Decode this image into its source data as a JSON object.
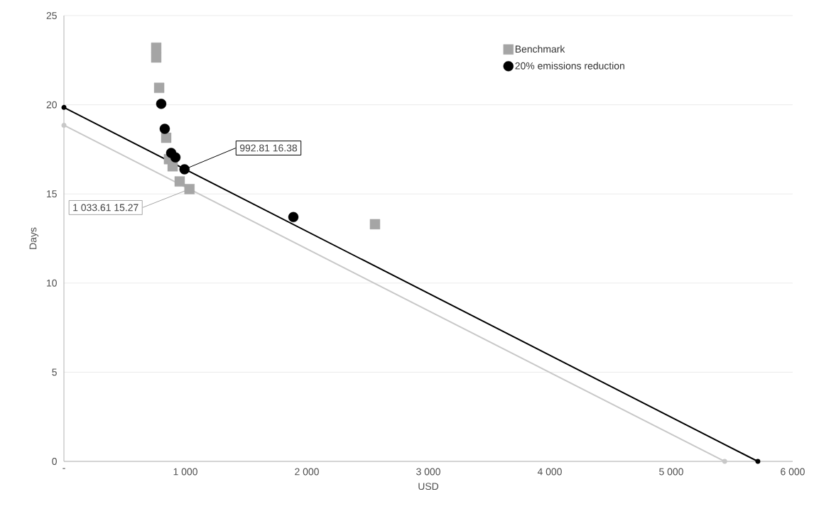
{
  "chart_data": {
    "type": "scatter",
    "xlabel": "USD",
    "ylabel": "Days",
    "xlim": [
      0,
      6000
    ],
    "ylim": [
      0,
      25
    ],
    "xticks": [
      {
        "value": 0,
        "label": "-"
      },
      {
        "value": 1000,
        "label": "1 000"
      },
      {
        "value": 2000,
        "label": "2 000"
      },
      {
        "value": 3000,
        "label": "3 000"
      },
      {
        "value": 4000,
        "label": "4 000"
      },
      {
        "value": 5000,
        "label": "5 000"
      },
      {
        "value": 6000,
        "label": "6 000"
      }
    ],
    "yticks": [
      0,
      5,
      10,
      15,
      20,
      25
    ],
    "grid": "y",
    "legend": "top right",
    "series": [
      {
        "name": "Benchmark",
        "marker": "square",
        "color": "#a5a5a5",
        "x": [
          760,
          760,
          784,
          842,
          865,
          895,
          953,
          1033.61,
          2561
        ],
        "values": [
          23.2,
          22.65,
          20.95,
          18.15,
          16.95,
          16.55,
          15.7,
          15.27,
          13.3
        ]
      },
      {
        "name": "20% emissions reduction",
        "marker": "circle",
        "color": "#000000",
        "x": [
          801,
          830,
          883,
          918,
          992.81,
          1889
        ],
        "values": [
          20.05,
          18.65,
          17.3,
          17.05,
          16.38,
          13.7
        ]
      },
      {
        "type": "line",
        "marker": "circle",
        "color": "#c8c8c8",
        "x": [
          0,
          5440
        ],
        "values": [
          18.85,
          0
        ]
      },
      {
        "type": "line",
        "marker": "circle",
        "color": "#000000",
        "x": [
          0,
          5713
        ],
        "values": [
          19.85,
          0
        ]
      }
    ],
    "annotations": [
      {
        "text": "992.81 16.38",
        "x": 992.81,
        "y": 16.38
      },
      {
        "text": "1 033.61  15.27",
        "x": 1033.61,
        "y": 15.27
      }
    ]
  }
}
